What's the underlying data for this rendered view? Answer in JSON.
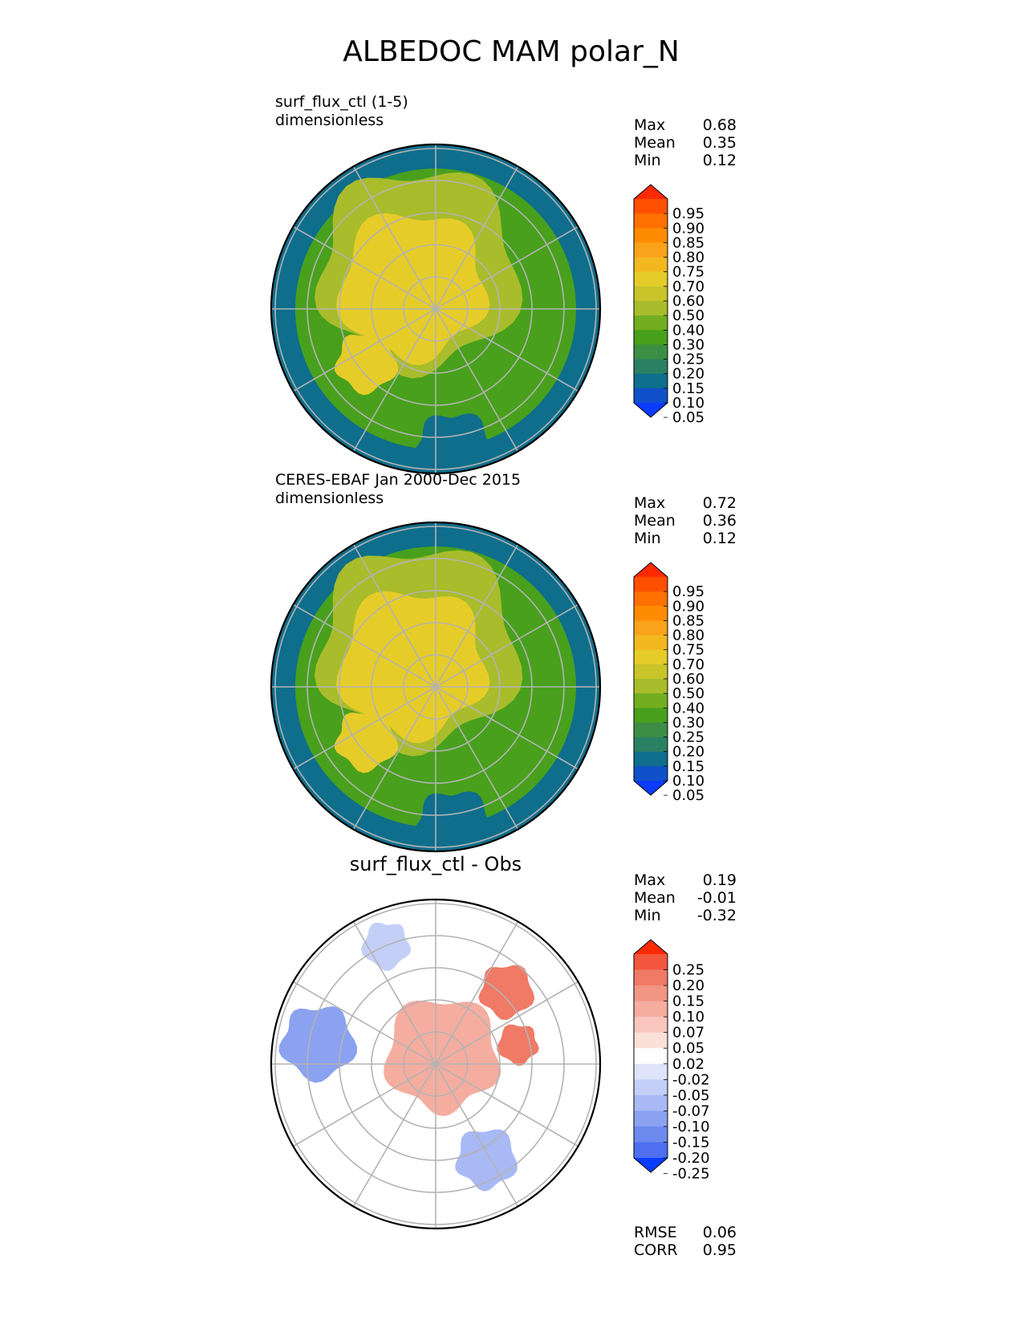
{
  "title": "ALBEDOC MAM polar_N",
  "colors": {
    "ocean": "#0e6e8c",
    "land_ice": "#e6cc28",
    "positive": "#e8423a",
    "negative": "#3a5ce8",
    "grid": "#b3b3b3",
    "frame": "#000000"
  },
  "panels": [
    {
      "id": "test",
      "left_text": "surf_flux_ctl (1-5)",
      "left_text2": "dimensionless",
      "center_text": "",
      "stats": [
        {
          "label": "Max",
          "value": "0.68"
        },
        {
          "label": "Mean",
          "value": "0.35"
        },
        {
          "label": "Min",
          "value": "0.12"
        }
      ],
      "colorbar": {
        "ticks": [
          "0.95",
          "0.90",
          "0.85",
          "0.80",
          "0.75",
          "0.70",
          "0.60",
          "0.50",
          "0.40",
          "0.30",
          "0.25",
          "0.20",
          "0.15",
          "0.10",
          "0.05"
        ],
        "colors": [
          "#ff2a00",
          "#ff5000",
          "#ff7000",
          "#ff8c00",
          "#f9a21a",
          "#f3b820",
          "#e6cc28",
          "#c8c42a",
          "#a8bc2c",
          "#72ae20",
          "#48a01c",
          "#3c8e44",
          "#2a8062",
          "#0e6e8c",
          "#1050c8",
          "#0a3cff"
        ]
      }
    },
    {
      "id": "reference",
      "left_text": "CERES-EBAF Jan 2000-Dec 2015",
      "left_text2": "dimensionless",
      "center_text": "",
      "stats": [
        {
          "label": "Max",
          "value": "0.72"
        },
        {
          "label": "Mean",
          "value": "0.36"
        },
        {
          "label": "Min",
          "value": "0.12"
        }
      ],
      "colorbar": {
        "ticks": [
          "0.95",
          "0.90",
          "0.85",
          "0.80",
          "0.75",
          "0.70",
          "0.60",
          "0.50",
          "0.40",
          "0.30",
          "0.25",
          "0.20",
          "0.15",
          "0.10",
          "0.05"
        ],
        "colors": [
          "#ff2a00",
          "#ff5000",
          "#ff7000",
          "#ff8c00",
          "#f9a21a",
          "#f3b820",
          "#e6cc28",
          "#c8c42a",
          "#a8bc2c",
          "#72ae20",
          "#48a01c",
          "#3c8e44",
          "#2a8062",
          "#0e6e8c",
          "#1050c8",
          "#0a3cff"
        ]
      }
    },
    {
      "id": "difference",
      "left_text": "",
      "left_text2": "",
      "center_text": "surf_flux_ctl - Obs",
      "stats": [
        {
          "label": "Max",
          "value": "0.19"
        },
        {
          "label": "Mean",
          "value": "-0.01"
        },
        {
          "label": "Min",
          "value": "-0.32"
        }
      ],
      "colorbar": {
        "ticks": [
          "0.25",
          "0.20",
          "0.15",
          "0.10",
          "0.07",
          "0.05",
          "0.02",
          "-0.02",
          "-0.05",
          "-0.07",
          "-0.10",
          "-0.15",
          "-0.20",
          "-0.25"
        ],
        "colors": [
          "#ff2a00",
          "#f2573e",
          "#f07a66",
          "#f29684",
          "#f5ada0",
          "#f8c6bd",
          "#fbe0da",
          "#ffffff",
          "#dfe4fb",
          "#c4cff8",
          "#a8b9f5",
          "#8ba2f1",
          "#6d8aee",
          "#4d6ff0",
          "#0a3cff"
        ]
      },
      "bottom_stats": [
        {
          "label": "RMSE",
          "value": "0.06"
        },
        {
          "label": "CORR",
          "value": "0.95"
        }
      ]
    }
  ],
  "chart_data": {
    "type": "heatmap",
    "title": "ALBEDOC MAM polar_N",
    "projection": "north polar stereographic",
    "panels": [
      {
        "name": "surf_flux_ctl (1-5)",
        "units": "dimensionless",
        "max": 0.68,
        "mean": 0.35,
        "min": 0.12,
        "levels": [
          0.05,
          0.1,
          0.15,
          0.2,
          0.25,
          0.3,
          0.4,
          0.5,
          0.6,
          0.7,
          0.75,
          0.8,
          0.85,
          0.9,
          0.95
        ]
      },
      {
        "name": "CERES-EBAF Jan 2000-Dec 2015",
        "units": "dimensionless",
        "max": 0.72,
        "mean": 0.36,
        "min": 0.12,
        "levels": [
          0.05,
          0.1,
          0.15,
          0.2,
          0.25,
          0.3,
          0.4,
          0.5,
          0.6,
          0.7,
          0.75,
          0.8,
          0.85,
          0.9,
          0.95
        ]
      },
      {
        "name": "surf_flux_ctl - Obs",
        "max": 0.19,
        "mean": -0.01,
        "min": -0.32,
        "rmse": 0.06,
        "corr": 0.95,
        "levels": [
          -0.25,
          -0.2,
          -0.15,
          -0.1,
          -0.07,
          -0.05,
          -0.02,
          0.02,
          0.05,
          0.07,
          0.1,
          0.15,
          0.2,
          0.25
        ]
      }
    ]
  }
}
